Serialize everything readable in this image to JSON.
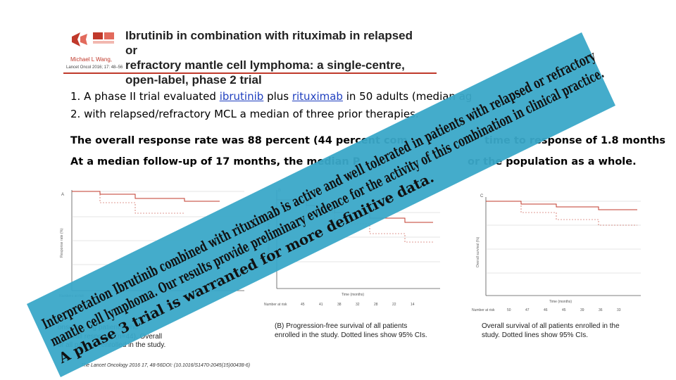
{
  "header": {
    "title": "Ibrutinib in combination with rituximab in relapsed or\nrefractory mantle cell lymphoma: a single-centre,\nopen-label, phase 2 trial",
    "authors": "Michael L Wang,",
    "journal_ref": "Lancet Oncol 2016; 17: 48–56"
  },
  "list": [
    {
      "num": "1.",
      "before": "A phase II trial evaluated ",
      "drug1": "ibrutinib",
      "middle": " plus ",
      "drug2": "rituximab",
      "after": " in 50 adults (median ag"
    },
    {
      "num": "2.",
      "text": "with relapsed/refractory MCL a median of three prior therapies."
    }
  ],
  "stats": {
    "line1_left": "The overall response rate was 88 percent (44 percent com",
    "line1_right": "time to response of 1.8 months",
    "line2_left": "At a median follow-up of 17 months, the median P",
    "line2_right": "or the population as a whole."
  },
  "panels": {
    "a": {
      "caption": "onse among patients who\n, overall response (n=44). Overall\nof all patients enrolled in the study."
    },
    "b": {
      "caption": "(B) Progression-free survival of all patients\nenrolled in the study. Dotted lines show 95% CIs."
    },
    "c": {
      "caption": "Overall survival of all patients enrolled in the\nstudy. Dotted lines show 95% CIs."
    }
  },
  "footer": {
    "citation": "The Lancet Oncology 2016 17, 48-56DOI: (10.1016/S1470-2045(15)00438-6)"
  },
  "banner": {
    "lines": [
      "Interpretation Ibrutinib combined with rituximab is active and well tolerated in patients with relapsed or refractory",
      "mantle cell lymphoma. Our results provide preliminary evidence for the activity of this combination in clinical practice.",
      "A phase 3 trial is warranted for more definitive data."
    ],
    "color": "#3aa8c8"
  },
  "colors": {
    "accent": "#c0392b",
    "link": "#1f3fbf",
    "banner": "#3aa8c8"
  }
}
